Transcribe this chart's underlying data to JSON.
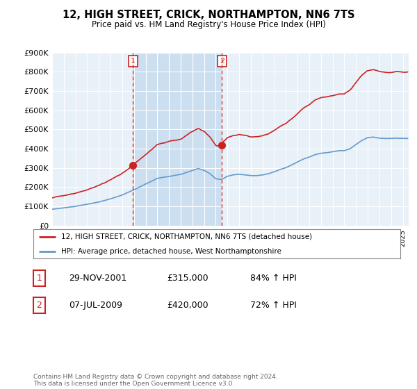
{
  "title": "12, HIGH STREET, CRICK, NORTHAMPTON, NN6 7TS",
  "subtitle": "Price paid vs. HM Land Registry's House Price Index (HPI)",
  "ylim": [
    0,
    900000
  ],
  "yticks": [
    0,
    100000,
    200000,
    300000,
    400000,
    500000,
    600000,
    700000,
    800000,
    900000
  ],
  "ytick_labels": [
    "£0",
    "£100K",
    "£200K",
    "£300K",
    "£400K",
    "£500K",
    "£600K",
    "£700K",
    "£800K",
    "£900K"
  ],
  "background_color": "#ffffff",
  "plot_bg_color": "#e8f0f8",
  "shade_color": "#ccdff0",
  "grid_color": "#ffffff",
  "legend_label_red": "12, HIGH STREET, CRICK, NORTHAMPTON, NN6 7TS (detached house)",
  "legend_label_blue": "HPI: Average price, detached house, West Northamptonshire",
  "sale1_date": "29-NOV-2001",
  "sale1_price": "£315,000",
  "sale1_pct": "84% ↑ HPI",
  "sale2_date": "07-JUL-2009",
  "sale2_price": "£420,000",
  "sale2_pct": "72% ↑ HPI",
  "footer": "Contains HM Land Registry data © Crown copyright and database right 2024.\nThis data is licensed under the Open Government Licence v3.0.",
  "hpi_color": "#6699cc",
  "price_color": "#cc2222",
  "marker1_x": 2001.91,
  "marker1_y": 315000,
  "marker2_x": 2009.52,
  "marker2_y": 420000,
  "vline1_x": 2001.91,
  "vline2_x": 2009.52,
  "xmin": 1995.0,
  "xmax": 2025.5
}
